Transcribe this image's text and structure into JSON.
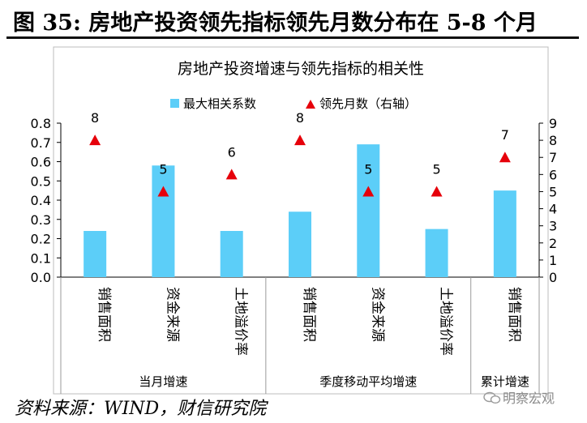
{
  "figure_title": "图 35:  房地产投资领先指标领先月数分布在 5-8 个月",
  "source": "资料来源：WIND，财信研究院",
  "watermark": "明察宏观",
  "colors": {
    "bar": "#5ccef8",
    "marker": "#e6000a",
    "axis": "#000000",
    "divider": "#9a9a9a"
  },
  "chart_data": {
    "type": "bar",
    "title": "房地产投资增速与领先指标的相关性",
    "legend_position": "top",
    "categories": [
      "销售面积",
      "资金来源",
      "土地溢价率",
      "销售面积",
      "资金来源",
      "土地溢价率",
      "销售面积"
    ],
    "groups": [
      {
        "label": "当月增速",
        "span": 3
      },
      {
        "label": "季度移动平均增速",
        "span": 3
      },
      {
        "label": "累计增速",
        "span": 1
      }
    ],
    "series": [
      {
        "name": "最大相关系数",
        "type": "bar",
        "axis": "left",
        "values": [
          0.24,
          0.58,
          0.24,
          0.34,
          0.69,
          0.25,
          0.45
        ]
      },
      {
        "name": "领先月数（右轴）",
        "type": "scatter",
        "axis": "right",
        "marker": "triangle",
        "values": [
          8,
          5,
          6,
          8,
          5,
          5,
          7
        ]
      }
    ],
    "y_left": {
      "lim": [
        0,
        0.8
      ],
      "ticks": [
        "0.0",
        "0.1",
        "0.2",
        "0.3",
        "0.4",
        "0.5",
        "0.6",
        "0.7",
        "0.8"
      ]
    },
    "y_right": {
      "lim": [
        0,
        9
      ],
      "ticks": [
        "0",
        "1",
        "2",
        "3",
        "4",
        "5",
        "6",
        "7",
        "8",
        "9"
      ]
    },
    "grid": false
  }
}
